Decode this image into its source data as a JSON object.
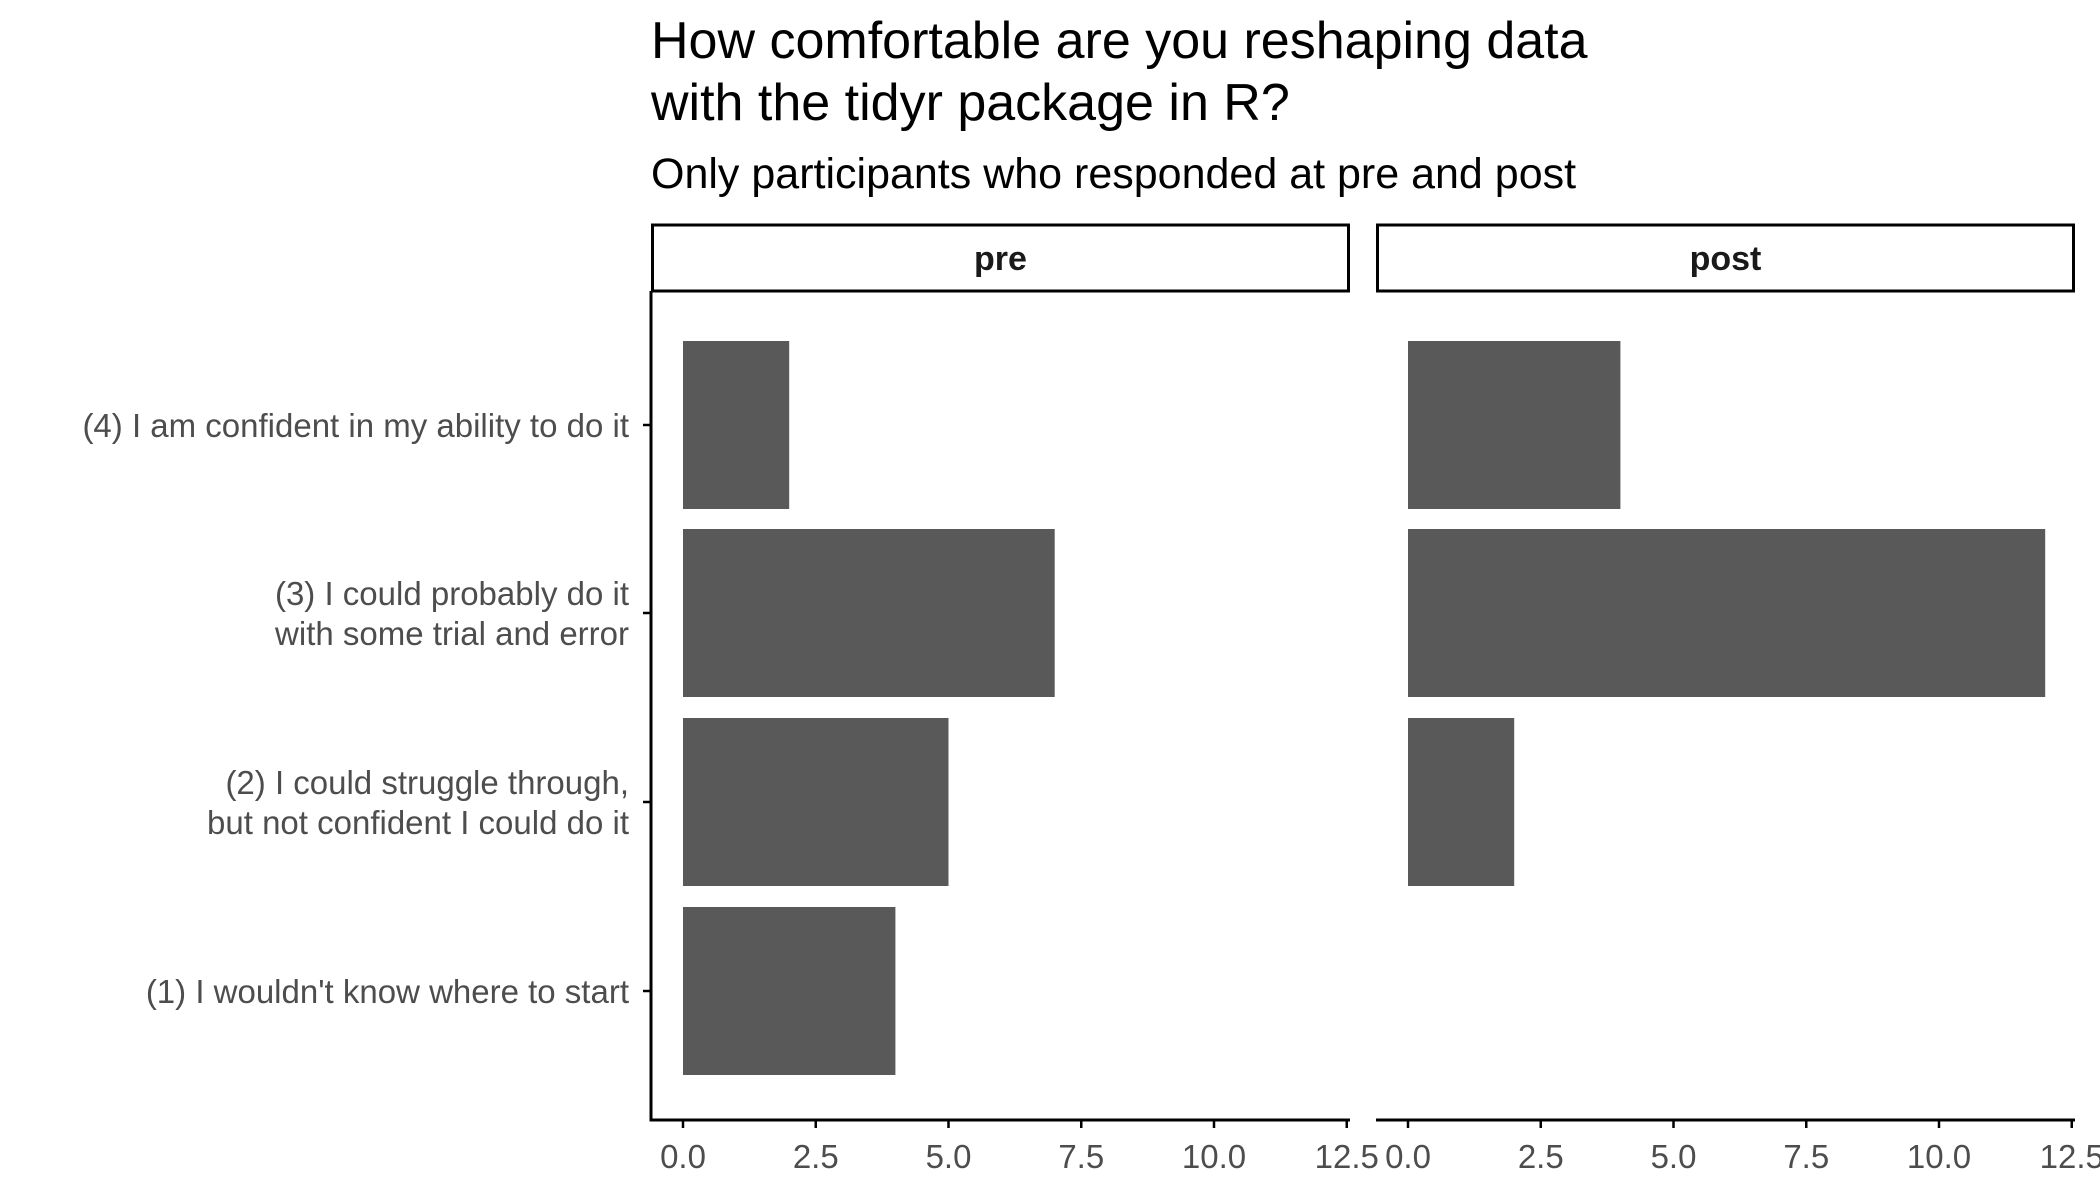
{
  "chart_data": {
    "type": "bar",
    "orientation": "horizontal",
    "title_lines": [
      "How comfortable are you reshaping data",
      "with the tidyr package in R?"
    ],
    "subtitle": "Only participants who responded at pre and post",
    "xlabel": "",
    "ylabel": "",
    "xlim": [
      0,
      12.5
    ],
    "x_ticks": [
      "0.0",
      "2.5",
      "5.0",
      "7.5",
      "10.0",
      "12.5"
    ],
    "x_tick_values": [
      0,
      2.5,
      5,
      7.5,
      10,
      12.5
    ],
    "categories": [
      [
        "(4) I am confident in my ability to do it"
      ],
      [
        "(3) I could probably do it",
        "with some trial and error"
      ],
      [
        "(2) I could struggle through,",
        "but not confident I could do it"
      ],
      [
        "(1) I wouldn't know where to start"
      ]
    ],
    "panels": [
      {
        "name": "pre",
        "values": [
          2,
          7,
          5,
          4
        ]
      },
      {
        "name": "post",
        "values": [
          4,
          12,
          2,
          0
        ]
      }
    ],
    "grid": false,
    "bar_color": "#595959",
    "axis_color": "#000000",
    "tick_label_color": "#4d4d4d"
  }
}
